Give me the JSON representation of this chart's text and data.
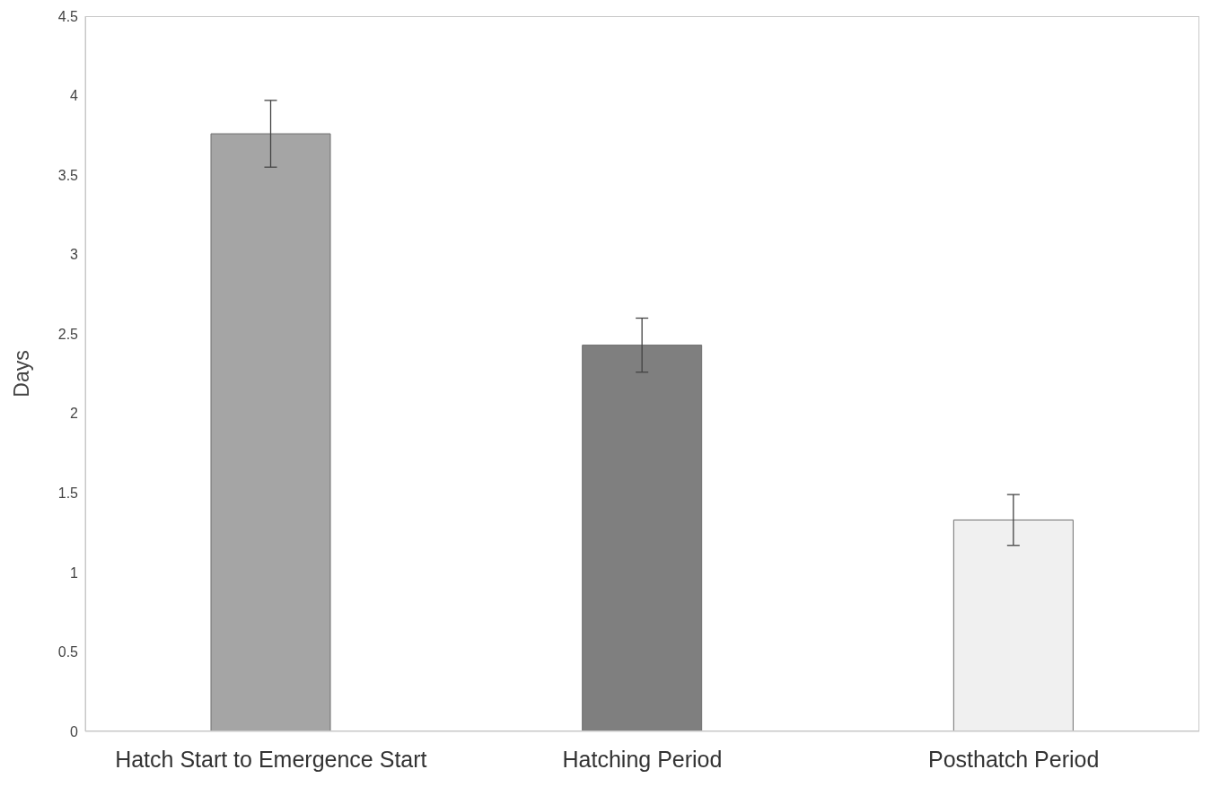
{
  "chart_data": {
    "type": "bar",
    "ylabel": "Days",
    "categories": [
      "Hatch Start to Emergence Start",
      "Hatching Period",
      "Posthatch Period"
    ],
    "values": [
      3.76,
      2.43,
      1.33
    ],
    "errors": [
      0.21,
      0.17,
      0.16
    ],
    "colors": [
      "#a5a5a5",
      "#7f7f7f",
      "#f0f0f0"
    ],
    "ylim": [
      0,
      4.5
    ],
    "yticks": [
      0,
      0.5,
      1,
      1.5,
      2,
      2.5,
      3,
      3.5,
      4,
      4.5
    ],
    "grid": false
  }
}
